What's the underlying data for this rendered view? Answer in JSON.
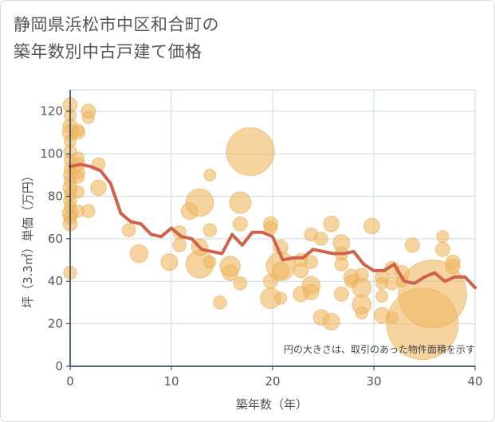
{
  "title": "静岡県浜松市中区和合町の\n築年数別中古戸建て価格",
  "chart_data": {
    "type": "scatter",
    "title": "静岡県浜松市中区和合町の\n築年数別中古戸建て価格",
    "xlabel": "築年数（年）",
    "ylabel": "坪（3.3㎡）単価（万円）",
    "xlim": [
      0,
      40
    ],
    "ylim": [
      0,
      130
    ],
    "x_ticks": [
      0,
      10,
      20,
      30,
      40
    ],
    "y_ticks": [
      0,
      20,
      40,
      60,
      80,
      100,
      120
    ],
    "grid": true,
    "note": "円の大きさは、取引のあった物件面積を示す",
    "colors": {
      "bubble": "#f0b860",
      "line": "#d0624c",
      "grid": "#c9d9e6",
      "axis": "#1f3a5a"
    },
    "series": [
      {
        "type": "bubble",
        "points": [
          {
            "x": 0,
            "y": 123,
            "s": 1.2
          },
          {
            "x": 0,
            "y": 118,
            "s": 1.0
          },
          {
            "x": 0,
            "y": 113,
            "s": 1.2
          },
          {
            "x": 0,
            "y": 110,
            "s": 1.3
          },
          {
            "x": 0,
            "y": 106,
            "s": 1.0
          },
          {
            "x": 0,
            "y": 101,
            "s": 1.1
          },
          {
            "x": 0,
            "y": 97,
            "s": 1.0
          },
          {
            "x": 0,
            "y": 93,
            "s": 1.0
          },
          {
            "x": 0,
            "y": 90,
            "s": 1.1
          },
          {
            "x": 0,
            "y": 87,
            "s": 1.0
          },
          {
            "x": 0,
            "y": 84,
            "s": 1.2
          },
          {
            "x": 0,
            "y": 81,
            "s": 1.0
          },
          {
            "x": 0,
            "y": 78,
            "s": 1.1
          },
          {
            "x": 0,
            "y": 75,
            "s": 1.0
          },
          {
            "x": 0,
            "y": 72,
            "s": 1.3
          },
          {
            "x": 0,
            "y": 70,
            "s": 1.1
          },
          {
            "x": 0,
            "y": 67,
            "s": 1.2
          },
          {
            "x": 0,
            "y": 44,
            "s": 1.1
          },
          {
            "x": 0.8,
            "y": 111,
            "s": 1.0
          },
          {
            "x": 0.8,
            "y": 110,
            "s": 1.1
          },
          {
            "x": 0.8,
            "y": 98,
            "s": 1.0
          },
          {
            "x": 0.8,
            "y": 95,
            "s": 1.1
          },
          {
            "x": 0.8,
            "y": 91,
            "s": 1.1
          },
          {
            "x": 0.8,
            "y": 89,
            "s": 1.0
          },
          {
            "x": 0.8,
            "y": 82,
            "s": 1.0
          },
          {
            "x": 0.8,
            "y": 73,
            "s": 1.0
          },
          {
            "x": 1.8,
            "y": 120,
            "s": 1.2
          },
          {
            "x": 1.8,
            "y": 117,
            "s": 1.0
          },
          {
            "x": 1.8,
            "y": 73,
            "s": 1.1
          },
          {
            "x": 2.8,
            "y": 95,
            "s": 1.1
          },
          {
            "x": 2.8,
            "y": 84,
            "s": 1.3
          },
          {
            "x": 5.8,
            "y": 64,
            "s": 1.1
          },
          {
            "x": 6.8,
            "y": 53,
            "s": 1.5
          },
          {
            "x": 9.8,
            "y": 49,
            "s": 1.4
          },
          {
            "x": 10.8,
            "y": 63,
            "s": 1.1
          },
          {
            "x": 10.8,
            "y": 57,
            "s": 1.1
          },
          {
            "x": 11.8,
            "y": 73,
            "s": 1.4
          },
          {
            "x": 12.8,
            "y": 77,
            "s": 2.3
          },
          {
            "x": 12.8,
            "y": 48,
            "s": 2.3
          },
          {
            "x": 12.8,
            "y": 56,
            "s": 1.4
          },
          {
            "x": 13.8,
            "y": 90,
            "s": 1.0
          },
          {
            "x": 13.8,
            "y": 64,
            "s": 1.1
          },
          {
            "x": 13.8,
            "y": 49,
            "s": 1.0
          },
          {
            "x": 14.8,
            "y": 30,
            "s": 1.1
          },
          {
            "x": 15.8,
            "y": 47,
            "s": 1.7
          },
          {
            "x": 15.8,
            "y": 44,
            "s": 1.3
          },
          {
            "x": 16.8,
            "y": 77,
            "s": 1.8
          },
          {
            "x": 16.8,
            "y": 67,
            "s": 1.2
          },
          {
            "x": 16.8,
            "y": 39,
            "s": 1.1
          },
          {
            "x": 17.8,
            "y": 101,
            "s": 4.0
          },
          {
            "x": 19.8,
            "y": 67,
            "s": 1.2
          },
          {
            "x": 19.8,
            "y": 65,
            "s": 1.1
          },
          {
            "x": 19.8,
            "y": 40,
            "s": 1.2
          },
          {
            "x": 19.8,
            "y": 32,
            "s": 1.7
          },
          {
            "x": 20.8,
            "y": 56,
            "s": 1.2
          },
          {
            "x": 20.8,
            "y": 47,
            "s": 2.4
          },
          {
            "x": 20.8,
            "y": 45,
            "s": 1.4
          },
          {
            "x": 20.8,
            "y": 32,
            "s": 1.0
          },
          {
            "x": 22.8,
            "y": 50,
            "s": 1.1
          },
          {
            "x": 22.8,
            "y": 45,
            "s": 1.2
          },
          {
            "x": 22.8,
            "y": 34,
            "s": 1.3
          },
          {
            "x": 23.8,
            "y": 62,
            "s": 1.1
          },
          {
            "x": 23.8,
            "y": 49,
            "s": 1.1
          },
          {
            "x": 23.8,
            "y": 38,
            "s": 1.5
          },
          {
            "x": 23.8,
            "y": 35,
            "s": 1.3
          },
          {
            "x": 24.8,
            "y": 60,
            "s": 1.1
          },
          {
            "x": 24.8,
            "y": 23,
            "s": 1.3
          },
          {
            "x": 25.8,
            "y": 67,
            "s": 1.3
          },
          {
            "x": 25.8,
            "y": 21,
            "s": 1.4
          },
          {
            "x": 26.8,
            "y": 58,
            "s": 1.4
          },
          {
            "x": 26.8,
            "y": 53,
            "s": 1.1
          },
          {
            "x": 26.8,
            "y": 48,
            "s": 1.1
          },
          {
            "x": 26.8,
            "y": 34,
            "s": 1.2
          },
          {
            "x": 27.8,
            "y": 42,
            "s": 1.3
          },
          {
            "x": 27.8,
            "y": 40,
            "s": 1.1
          },
          {
            "x": 28.8,
            "y": 43,
            "s": 1.1
          },
          {
            "x": 28.8,
            "y": 37,
            "s": 1.6
          },
          {
            "x": 28.8,
            "y": 29,
            "s": 1.6
          },
          {
            "x": 28.8,
            "y": 25,
            "s": 1.0
          },
          {
            "x": 29.8,
            "y": 66,
            "s": 1.3
          },
          {
            "x": 30.8,
            "y": 42,
            "s": 1.1
          },
          {
            "x": 30.8,
            "y": 39,
            "s": 1.0
          },
          {
            "x": 30.8,
            "y": 33,
            "s": 1.0
          },
          {
            "x": 30.8,
            "y": 24,
            "s": 1.3
          },
          {
            "x": 31.8,
            "y": 46,
            "s": 1.2
          },
          {
            "x": 31.8,
            "y": 39,
            "s": 1.1
          },
          {
            "x": 31.8,
            "y": 23,
            "s": 1.0
          },
          {
            "x": 32.8,
            "y": 44,
            "s": 1.2
          },
          {
            "x": 32.8,
            "y": 40,
            "s": 1.0
          },
          {
            "x": 33.8,
            "y": 57,
            "s": 1.2
          },
          {
            "x": 34.8,
            "y": 20,
            "s": 6.0
          },
          {
            "x": 35.8,
            "y": 34,
            "s": 5.7
          },
          {
            "x": 36.8,
            "y": 61,
            "s": 1.0
          },
          {
            "x": 36.8,
            "y": 55,
            "s": 1.2
          },
          {
            "x": 37.8,
            "y": 49,
            "s": 1.2
          },
          {
            "x": 37.8,
            "y": 47,
            "s": 1.2
          }
        ]
      },
      {
        "type": "line",
        "x": [
          0,
          1,
          2,
          3,
          4,
          5,
          6,
          7,
          8,
          9,
          10,
          11,
          12,
          13,
          14,
          15,
          16,
          17,
          18,
          19,
          20,
          21,
          22,
          23,
          24,
          25,
          26,
          27,
          28,
          29,
          30,
          31,
          32,
          33,
          34,
          35,
          36,
          37,
          38,
          39,
          40
        ],
        "y": [
          94,
          95,
          94,
          92,
          86,
          72,
          68,
          67,
          62,
          61,
          65,
          61,
          60,
          55,
          54,
          53,
          62,
          57,
          63,
          63,
          61,
          50,
          51,
          51,
          55,
          54,
          53,
          53,
          54,
          48,
          45,
          45,
          48,
          40,
          39,
          42,
          44,
          40,
          42,
          42,
          37
        ]
      }
    ]
  }
}
